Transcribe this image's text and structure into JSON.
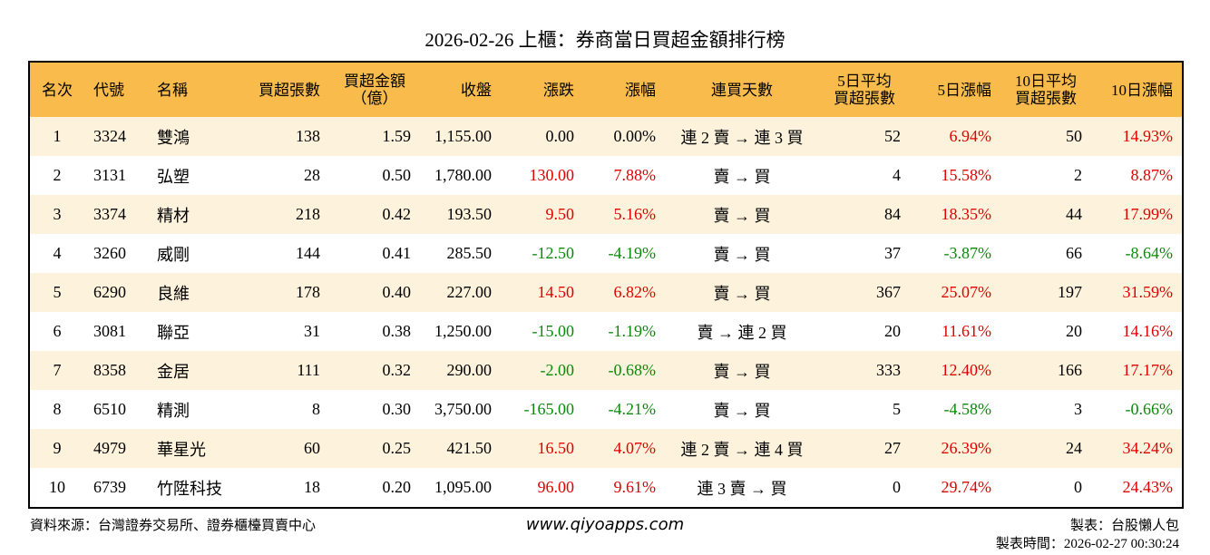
{
  "title": "2026-02-26 上櫃：券商當日買超金額排行榜",
  "table": {
    "header": [
      "名次",
      "代號",
      "名稱",
      "買超張數",
      "買超金額\n（億）",
      "收盤",
      "漲跌",
      "漲幅",
      "連買天數",
      "5日平均\n買超張數",
      "5日漲幅",
      "10日平均\n買超張數",
      "10日漲幅"
    ],
    "rows": [
      [
        "1",
        "3324",
        "雙鴻",
        "138",
        "1.59",
        "1,155.00",
        "0.00",
        "0.00%",
        "連 2 賣 → 連 3 買",
        "52",
        "6.94%",
        "50",
        "14.93%"
      ],
      [
        "2",
        "3131",
        "弘塑",
        "28",
        "0.50",
        "1,780.00",
        "130.00",
        "7.88%",
        "賣 → 買",
        "4",
        "15.58%",
        "2",
        "8.87%"
      ],
      [
        "3",
        "3374",
        "精材",
        "218",
        "0.42",
        "193.50",
        "9.50",
        "5.16%",
        "賣 → 買",
        "84",
        "18.35%",
        "44",
        "17.99%"
      ],
      [
        "4",
        "3260",
        "威剛",
        "144",
        "0.41",
        "285.50",
        "-12.50",
        "-4.19%",
        "賣 → 買",
        "37",
        "-3.87%",
        "66",
        "-8.64%"
      ],
      [
        "5",
        "6290",
        "良維",
        "178",
        "0.40",
        "227.00",
        "14.50",
        "6.82%",
        "賣 → 買",
        "367",
        "25.07%",
        "197",
        "31.59%"
      ],
      [
        "6",
        "3081",
        "聯亞",
        "31",
        "0.38",
        "1,250.00",
        "-15.00",
        "-1.19%",
        "賣 → 連 2 買",
        "20",
        "11.61%",
        "20",
        "14.16%"
      ],
      [
        "7",
        "8358",
        "金居",
        "111",
        "0.32",
        "290.00",
        "-2.00",
        "-0.68%",
        "賣 → 買",
        "333",
        "12.40%",
        "166",
        "17.17%"
      ],
      [
        "8",
        "6510",
        "精測",
        "8",
        "0.30",
        "3,750.00",
        "-165.00",
        "-4.21%",
        "賣 → 買",
        "5",
        "-4.58%",
        "3",
        "-0.66%"
      ],
      [
        "9",
        "4979",
        "華星光",
        "60",
        "0.25",
        "421.50",
        "16.50",
        "4.07%",
        "連 2 賣 → 連 4 買",
        "27",
        "26.39%",
        "24",
        "34.24%"
      ],
      [
        "10",
        "6739",
        "竹陞科技",
        "18",
        "0.20",
        "1,095.00",
        "96.00",
        "9.61%",
        "連 3 賣 → 買",
        "0",
        "29.74%",
        "0",
        "24.43%"
      ]
    ]
  },
  "footer": {
    "source": "資料來源：台灣證券交易所、證券櫃檯買賣中心",
    "website": "www.qiyoapps.com",
    "maker": "製表：台股懶人包",
    "time": "製表時間：2026-02-27 00:30:24"
  }
}
